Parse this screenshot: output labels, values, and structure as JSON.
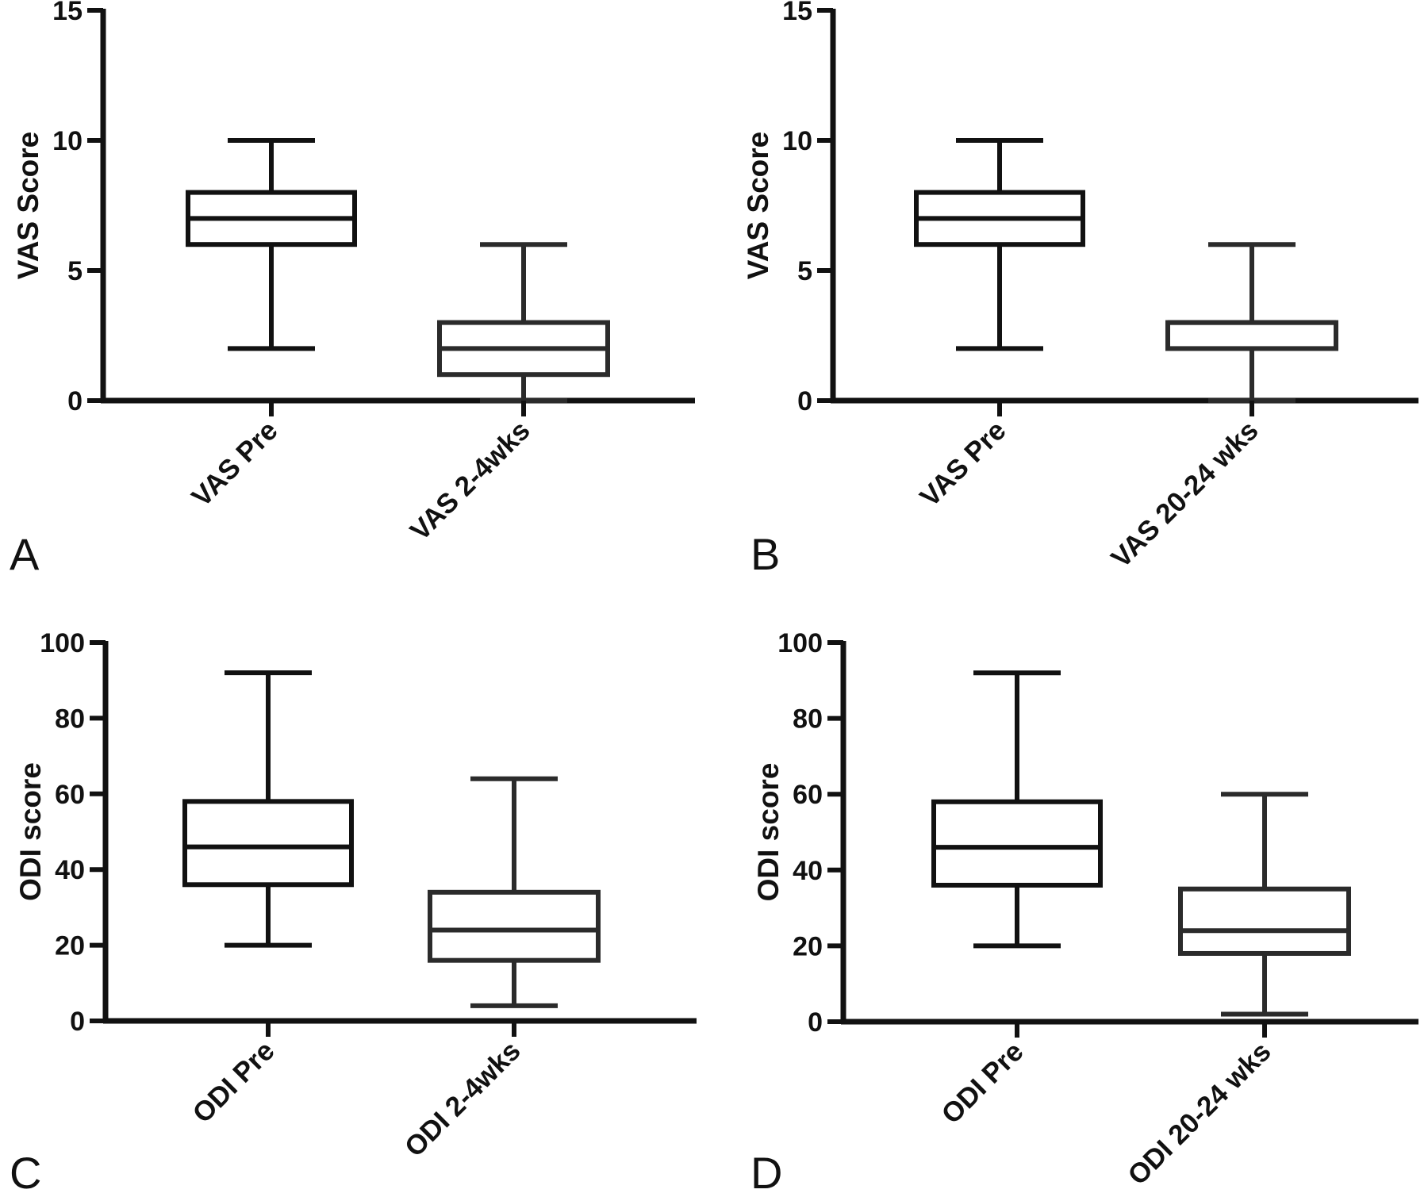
{
  "chart_data": [
    {
      "panel_label": "A",
      "type": "box",
      "ylabel": "VAS Score",
      "ylim": [
        0,
        15
      ],
      "yticks": [
        "0",
        "5",
        "10",
        "15"
      ],
      "categories": [
        "VAS Pre",
        "VAS 2-4wks"
      ],
      "series": [
        {
          "min": 2,
          "q1": 6,
          "median": 7,
          "q3": 8,
          "max": 10
        },
        {
          "min": 0,
          "q1": 1,
          "median": 2,
          "q3": 3,
          "max": 6
        }
      ]
    },
    {
      "panel_label": "B",
      "type": "box",
      "ylabel": "VAS Score",
      "ylim": [
        0,
        15
      ],
      "yticks": [
        "0",
        "5",
        "10",
        "15"
      ],
      "categories": [
        "VAS Pre",
        "VAS 20-24 wks"
      ],
      "series": [
        {
          "min": 2,
          "q1": 6,
          "median": 7,
          "q3": 8,
          "max": 10
        },
        {
          "min": 0,
          "q1": 2,
          "median": 3,
          "q3": 3,
          "max": 6
        }
      ]
    },
    {
      "panel_label": "C",
      "type": "box",
      "ylabel": "ODI score",
      "ylim": [
        0,
        100
      ],
      "yticks": [
        "0",
        "20",
        "40",
        "60",
        "80",
        "100"
      ],
      "categories": [
        "ODI Pre",
        "ODI 2-4wks"
      ],
      "series": [
        {
          "min": 20,
          "q1": 36,
          "median": 46,
          "q3": 58,
          "max": 92
        },
        {
          "min": 4,
          "q1": 16,
          "median": 24,
          "q3": 34,
          "max": 64
        }
      ]
    },
    {
      "panel_label": "D",
      "type": "box",
      "ylabel": "ODI score",
      "ylim": [
        0,
        100
      ],
      "yticks": [
        "0",
        "20",
        "40",
        "60",
        "80",
        "100"
      ],
      "categories": [
        "ODI Pre",
        "ODI 20-24 wks"
      ],
      "series": [
        {
          "min": 20,
          "q1": 36,
          "median": 46,
          "q3": 58,
          "max": 92
        },
        {
          "min": 2,
          "q1": 18,
          "median": 24,
          "q3": 35,
          "max": 60
        }
      ]
    }
  ],
  "colors": {
    "axis": "#111111",
    "box_first": "#111111",
    "box_second": "#2b2b2b"
  }
}
